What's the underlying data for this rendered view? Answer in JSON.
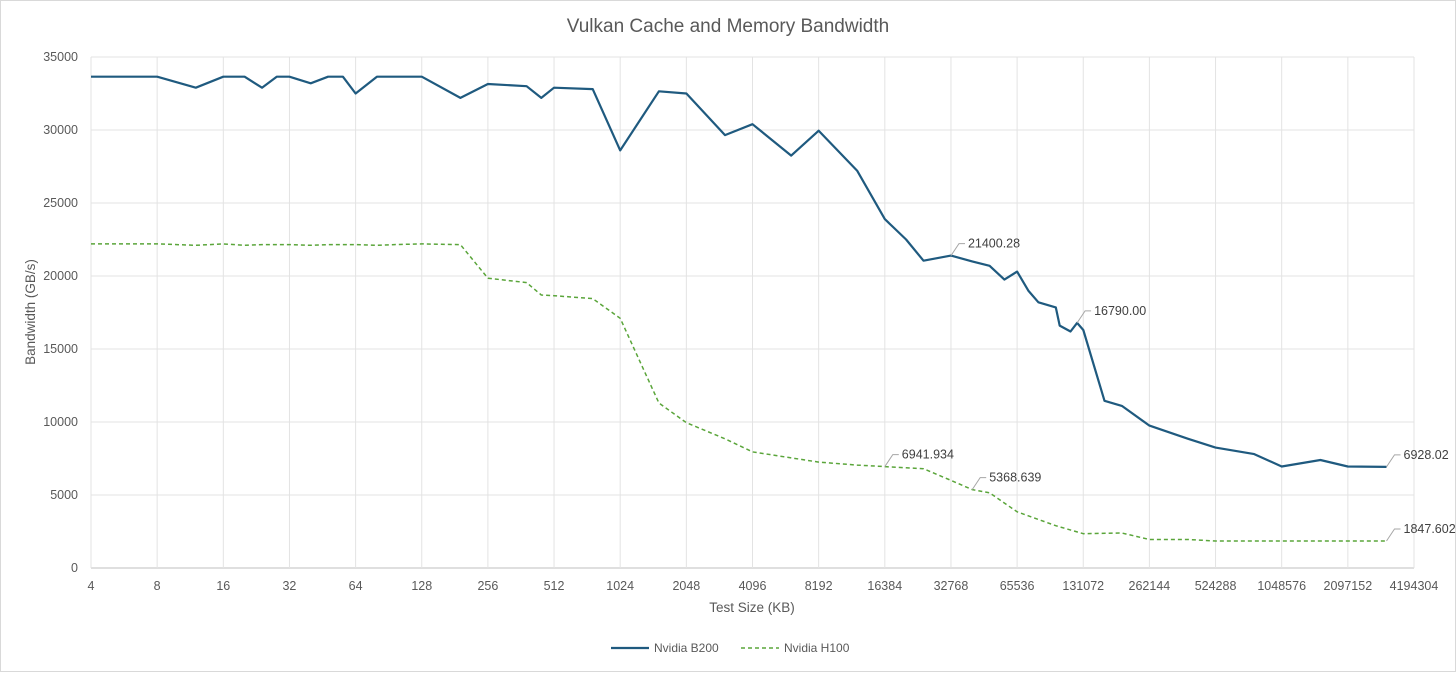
{
  "chart_data": {
    "type": "line",
    "title": "Vulkan Cache and Memory Bandwidth",
    "xlabel": "Test Size (KB)",
    "ylabel": "Bandwidth (GB/s)",
    "x_scale": "log2",
    "xlim": [
      4,
      4194304
    ],
    "ylim": [
      0,
      35000
    ],
    "x_ticks": [
      "4",
      "8",
      "16",
      "32",
      "64",
      "128",
      "256",
      "512",
      "1024",
      "2048",
      "4096",
      "8192",
      "16384",
      "32768",
      "65536",
      "131072",
      "262144",
      "524288",
      "1048576",
      "2097152",
      "4194304"
    ],
    "y_ticks": [
      "0",
      "5000",
      "10000",
      "15000",
      "20000",
      "25000",
      "30000",
      "35000"
    ],
    "grid": true,
    "legend_position": "bottom",
    "series": [
      {
        "name": "Nvidia B200",
        "color": "#1f5a7f",
        "style": "solid",
        "points": [
          [
            4,
            33650
          ],
          [
            8,
            33650
          ],
          [
            12,
            32900
          ],
          [
            16,
            33650
          ],
          [
            20,
            33650
          ],
          [
            24,
            32900
          ],
          [
            28,
            33650
          ],
          [
            32,
            33650
          ],
          [
            40,
            33200
          ],
          [
            48,
            33650
          ],
          [
            56,
            33650
          ],
          [
            64,
            32500
          ],
          [
            80,
            33650
          ],
          [
            96,
            33650
          ],
          [
            128,
            33650
          ],
          [
            192,
            32200
          ],
          [
            256,
            33150
          ],
          [
            384,
            33000
          ],
          [
            448,
            32200
          ],
          [
            512,
            32900
          ],
          [
            768,
            32800
          ],
          [
            1024,
            28600
          ],
          [
            1536,
            32650
          ],
          [
            2048,
            32500
          ],
          [
            3072,
            29650
          ],
          [
            4096,
            30400
          ],
          [
            6144,
            28250
          ],
          [
            8192,
            29950
          ],
          [
            12288,
            27200
          ],
          [
            16384,
            23900
          ],
          [
            20480,
            22500
          ],
          [
            24576,
            21050
          ],
          [
            32768,
            21400.28
          ],
          [
            40960,
            21000
          ],
          [
            49152,
            20700
          ],
          [
            57344,
            19750
          ],
          [
            65536,
            20300
          ],
          [
            73728,
            19000
          ],
          [
            81920,
            18200
          ],
          [
            98304,
            17850
          ],
          [
            102400,
            16600
          ],
          [
            114688,
            16200
          ],
          [
            122880,
            16790.0
          ],
          [
            131072,
            16300
          ],
          [
            163840,
            11450
          ],
          [
            196608,
            11100
          ],
          [
            262144,
            9750
          ],
          [
            393216,
            8850
          ],
          [
            524288,
            8250
          ],
          [
            786432,
            7800
          ],
          [
            1048576,
            6950
          ],
          [
            1572864,
            7400
          ],
          [
            2097152,
            6950
          ],
          [
            3145728,
            6928.02
          ]
        ]
      },
      {
        "name": "Nvidia H100",
        "color": "#5aa53a",
        "style": "dashed",
        "points": [
          [
            4,
            22200
          ],
          [
            8,
            22200
          ],
          [
            12,
            22100
          ],
          [
            16,
            22200
          ],
          [
            20,
            22100
          ],
          [
            24,
            22150
          ],
          [
            32,
            22150
          ],
          [
            40,
            22100
          ],
          [
            48,
            22150
          ],
          [
            64,
            22150
          ],
          [
            80,
            22100
          ],
          [
            96,
            22150
          ],
          [
            128,
            22200
          ],
          [
            192,
            22150
          ],
          [
            256,
            19850
          ],
          [
            384,
            19550
          ],
          [
            448,
            18700
          ],
          [
            512,
            18650
          ],
          [
            768,
            18450
          ],
          [
            1024,
            17100
          ],
          [
            1536,
            11300
          ],
          [
            2048,
            9950
          ],
          [
            3072,
            8850
          ],
          [
            4096,
            7950
          ],
          [
            8192,
            7250
          ],
          [
            12288,
            7050
          ],
          [
            16384,
            6941.934
          ],
          [
            24576,
            6800
          ],
          [
            32768,
            6000
          ],
          [
            40960,
            5368.639
          ],
          [
            49152,
            5150
          ],
          [
            65536,
            3850
          ],
          [
            98304,
            2900
          ],
          [
            131072,
            2350
          ],
          [
            196608,
            2400
          ],
          [
            262144,
            1950
          ],
          [
            393216,
            1950
          ],
          [
            524288,
            1850
          ],
          [
            1048576,
            1850
          ],
          [
            2097152,
            1850
          ],
          [
            3145728,
            1847.602
          ]
        ]
      }
    ],
    "data_labels": [
      {
        "series": 0,
        "x": 32768,
        "y": 21400.28,
        "text": "21400.28"
      },
      {
        "series": 0,
        "x": 122880,
        "y": 16790.0,
        "text": "16790.00"
      },
      {
        "series": 0,
        "x": 3145728,
        "y": 6928.02,
        "text": "6928.02"
      },
      {
        "series": 1,
        "x": 16384,
        "y": 6941.934,
        "text": "6941.934"
      },
      {
        "series": 1,
        "x": 40960,
        "y": 5368.639,
        "text": "5368.639"
      },
      {
        "series": 1,
        "x": 3145728,
        "y": 1847.602,
        "text": "1847.602"
      }
    ]
  }
}
